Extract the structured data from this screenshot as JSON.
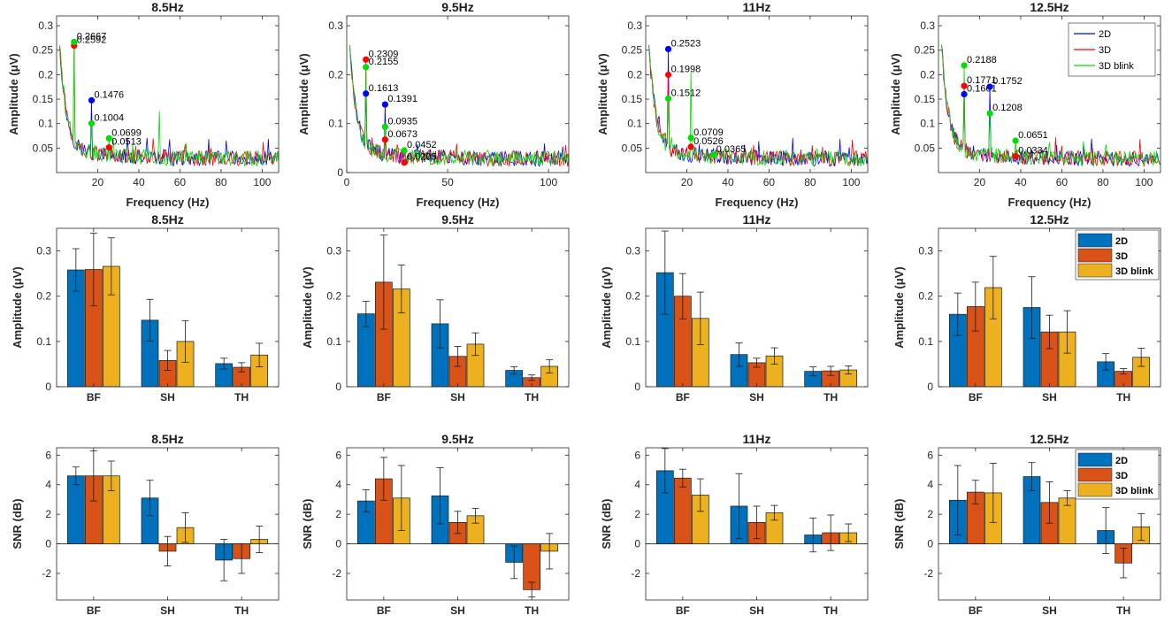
{
  "colors": {
    "spec_2d": "#0000ff",
    "spec_3d": "#ff0000",
    "spec_blink": "#00dd00",
    "bar_2d": "#0072bd",
    "bar_3d": "#d95319",
    "bar_blink": "#edb120"
  },
  "chart_data": [
    {
      "type": "line",
      "title": "8.5Hz",
      "xlabel": "Frequency (Hz)",
      "ylabel": "Amplitude (μV)",
      "xlim": [
        0,
        108
      ],
      "ylim": [
        0,
        0.32
      ],
      "xticks": [
        20,
        40,
        60,
        80,
        100
      ],
      "yticks": [
        0.05,
        0.1,
        0.15,
        0.2,
        0.25,
        0.3
      ],
      "series": [
        "2D",
        "3D",
        "3D blink"
      ],
      "peaks": [
        {
          "series": "3D",
          "x": 8.5,
          "y": 0.2592,
          "label": "0.2592"
        },
        {
          "series": "3D blink",
          "x": 8.5,
          "y": 0.2667,
          "label": "0.2667"
        },
        {
          "series": "2D",
          "x": 17,
          "y": 0.1476,
          "label": "0.1476"
        },
        {
          "series": "3D blink",
          "x": 17,
          "y": 0.1004,
          "label": "0.1004"
        },
        {
          "series": "3D blink",
          "x": 25.5,
          "y": 0.0699,
          "label": "0.0699"
        },
        {
          "series": "3D",
          "x": 25.5,
          "y": 0.0513,
          "label": "0.0513"
        }
      ]
    },
    {
      "type": "line",
      "title": "9.5Hz",
      "xlabel": "Frequency (Hz)",
      "ylabel": "Amplitude (μV)",
      "xlim": [
        0,
        110
      ],
      "ylim": [
        0,
        0.32
      ],
      "xticks": [
        0,
        50,
        100
      ],
      "yticks": [
        0,
        0.1,
        0.2,
        0.3
      ],
      "series": [
        "2D",
        "3D",
        "3D blink"
      ],
      "peaks": [
        {
          "series": "3D",
          "x": 9.5,
          "y": 0.2309,
          "label": "0.2309"
        },
        {
          "series": "3D blink",
          "x": 9.5,
          "y": 0.2155,
          "label": "0.2155"
        },
        {
          "series": "2D",
          "x": 9.5,
          "y": 0.1613,
          "label": "0.1613"
        },
        {
          "series": "2D",
          "x": 19,
          "y": 0.1391,
          "label": "0.1391"
        },
        {
          "series": "3D blink",
          "x": 19,
          "y": 0.0935,
          "label": "0.0935"
        },
        {
          "series": "3D",
          "x": 19,
          "y": 0.0673,
          "label": "0.0673"
        },
        {
          "series": "3D blink",
          "x": 28.5,
          "y": 0.0452,
          "label": "0.0452"
        },
        {
          "series": "3D",
          "x": 28.5,
          "y": 0.0205,
          "label": "0.0205"
        }
      ]
    },
    {
      "type": "line",
      "title": "11Hz",
      "xlabel": "Frequency (Hz)",
      "ylabel": "Amplitude (μV)",
      "xlim": [
        0,
        108
      ],
      "ylim": [
        0,
        0.32
      ],
      "xticks": [
        20,
        40,
        60,
        80,
        100
      ],
      "yticks": [
        0.05,
        0.1,
        0.15,
        0.2,
        0.25,
        0.3
      ],
      "series": [
        "2D",
        "3D",
        "3D blink"
      ],
      "peaks": [
        {
          "series": "2D",
          "x": 11,
          "y": 0.2523,
          "label": "0.2523"
        },
        {
          "series": "3D",
          "x": 11,
          "y": 0.1998,
          "label": "0.1998"
        },
        {
          "series": "3D blink",
          "x": 11,
          "y": 0.1512,
          "label": "0.1512"
        },
        {
          "series": "3D blink",
          "x": 22,
          "y": 0.0709,
          "label": "0.0709"
        },
        {
          "series": "3D",
          "x": 22,
          "y": 0.0526,
          "label": "0.0526"
        },
        {
          "series": "3D blink",
          "x": 33,
          "y": 0.0365,
          "label": "0.0365"
        }
      ]
    },
    {
      "type": "line",
      "title": "12.5Hz",
      "xlabel": "Frequency (Hz)",
      "ylabel": "Amplitude (μV)",
      "xlim": [
        0,
        108
      ],
      "ylim": [
        0,
        0.32
      ],
      "xticks": [
        20,
        40,
        60,
        80,
        100
      ],
      "yticks": [
        0.05,
        0.1,
        0.15,
        0.2,
        0.25,
        0.3
      ],
      "series": [
        "2D",
        "3D",
        "3D blink"
      ],
      "legend": {
        "entries": [
          "2D",
          "3D",
          "3D blink"
        ],
        "placement": "top-right"
      },
      "peaks": [
        {
          "series": "3D blink",
          "x": 12.5,
          "y": 0.2188,
          "label": "0.2188"
        },
        {
          "series": "3D",
          "x": 12.5,
          "y": 0.1771,
          "label": "0.1771"
        },
        {
          "series": "2D",
          "x": 12.5,
          "y": 0.1601,
          "label": "0.1601"
        },
        {
          "series": "2D",
          "x": 25,
          "y": 0.1752,
          "label": "0.1752"
        },
        {
          "series": "3D blink",
          "x": 25,
          "y": 0.1208,
          "label": "0.1208"
        },
        {
          "series": "3D blink",
          "x": 37.5,
          "y": 0.0651,
          "label": "0.0651"
        },
        {
          "series": "3D",
          "x": 37.5,
          "y": 0.0334,
          "label": "0.0334"
        }
      ]
    },
    {
      "type": "bar",
      "title": "8.5Hz",
      "ylabel": "Amplitude (μV)",
      "categories": [
        "BF",
        "SH",
        "TH"
      ],
      "ylim": [
        0,
        0.35
      ],
      "yticks": [
        0,
        0.1,
        0.2,
        0.3
      ],
      "series": [
        {
          "name": "2D",
          "values": [
            0.258,
            0.147,
            0.051
          ],
          "err": [
            0.047,
            0.046,
            0.012
          ]
        },
        {
          "name": "3D",
          "values": [
            0.259,
            0.058,
            0.043
          ],
          "err": [
            0.08,
            0.022,
            0.01
          ]
        },
        {
          "name": "3D blink",
          "values": [
            0.266,
            0.1,
            0.07
          ],
          "err": [
            0.063,
            0.046,
            0.026
          ]
        }
      ]
    },
    {
      "type": "bar",
      "title": "9.5Hz",
      "ylabel": "Amplitude (μV)",
      "categories": [
        "BF",
        "SH",
        "TH"
      ],
      "ylim": [
        0,
        0.35
      ],
      "yticks": [
        0,
        0.1,
        0.2,
        0.3
      ],
      "series": [
        {
          "name": "2D",
          "values": [
            0.161,
            0.139,
            0.036
          ],
          "err": [
            0.028,
            0.053,
            0.008
          ]
        },
        {
          "name": "3D",
          "values": [
            0.231,
            0.067,
            0.02
          ],
          "err": [
            0.104,
            0.022,
            0.006
          ]
        },
        {
          "name": "3D blink",
          "values": [
            0.216,
            0.094,
            0.045
          ],
          "err": [
            0.053,
            0.025,
            0.015
          ]
        }
      ]
    },
    {
      "type": "bar",
      "title": "11Hz",
      "ylabel": "Amplitude (μV)",
      "categories": [
        "BF",
        "SH",
        "TH"
      ],
      "ylim": [
        0,
        0.35
      ],
      "yticks": [
        0,
        0.1,
        0.2,
        0.3
      ],
      "series": [
        {
          "name": "2D",
          "values": [
            0.252,
            0.071,
            0.034
          ],
          "err": [
            0.092,
            0.026,
            0.01
          ]
        },
        {
          "name": "3D",
          "values": [
            0.2,
            0.053,
            0.035
          ],
          "err": [
            0.05,
            0.01,
            0.01
          ]
        },
        {
          "name": "3D blink",
          "values": [
            0.151,
            0.068,
            0.037
          ],
          "err": [
            0.058,
            0.018,
            0.009
          ]
        }
      ]
    },
    {
      "type": "bar",
      "title": "12.5Hz",
      "ylabel": "Amplitude (μV)",
      "categories": [
        "BF",
        "SH",
        "TH"
      ],
      "ylim": [
        0,
        0.35
      ],
      "yticks": [
        0,
        0.1,
        0.2,
        0.3
      ],
      "legend": {
        "entries": [
          "2D",
          "3D",
          "3D blink"
        ],
        "placement": "top-right"
      },
      "series": [
        {
          "name": "2D",
          "values": [
            0.16,
            0.175,
            0.055
          ],
          "err": [
            0.047,
            0.068,
            0.018
          ]
        },
        {
          "name": "3D",
          "values": [
            0.177,
            0.121,
            0.034
          ],
          "err": [
            0.054,
            0.037,
            0.006
          ]
        },
        {
          "name": "3D blink",
          "values": [
            0.219,
            0.121,
            0.065
          ],
          "err": [
            0.069,
            0.047,
            0.02
          ]
        }
      ]
    },
    {
      "type": "bar",
      "title": "8.5Hz",
      "ylabel": "SNR (dB)",
      "categories": [
        "BF",
        "SH",
        "TH"
      ],
      "ylim": [
        -3.8,
        6.5
      ],
      "yticks": [
        -2,
        0,
        2,
        4,
        6
      ],
      "series": [
        {
          "name": "2D",
          "values": [
            4.6,
            3.1,
            -1.1
          ],
          "err": [
            0.6,
            1.2,
            1.4
          ]
        },
        {
          "name": "3D",
          "values": [
            4.6,
            -0.5,
            -1.0
          ],
          "err": [
            1.7,
            1.0,
            1.0
          ]
        },
        {
          "name": "3D blink",
          "values": [
            4.6,
            1.1,
            0.3
          ],
          "err": [
            1.0,
            1.0,
            0.9
          ]
        }
      ]
    },
    {
      "type": "bar",
      "title": "9.5Hz",
      "ylabel": "SNR (dB)",
      "categories": [
        "BF",
        "SH",
        "TH"
      ],
      "ylim": [
        -3.8,
        6.5
      ],
      "yticks": [
        -2,
        0,
        2,
        4,
        6
      ],
      "series": [
        {
          "name": "2D",
          "values": [
            2.9,
            3.25,
            -1.25
          ],
          "err": [
            0.75,
            1.9,
            1.1
          ]
        },
        {
          "name": "3D",
          "values": [
            4.4,
            1.45,
            -3.1
          ],
          "err": [
            1.45,
            0.75,
            0.5
          ]
        },
        {
          "name": "3D blink",
          "values": [
            3.1,
            1.9,
            -0.5
          ],
          "err": [
            2.2,
            0.5,
            1.2
          ]
        }
      ]
    },
    {
      "type": "bar",
      "title": "11Hz",
      "ylabel": "SNR (dB)",
      "categories": [
        "BF",
        "SH",
        "TH"
      ],
      "ylim": [
        -3.8,
        6.5
      ],
      "yticks": [
        -2,
        0,
        2,
        4,
        6
      ],
      "series": [
        {
          "name": "2D",
          "values": [
            4.95,
            2.55,
            0.6
          ],
          "err": [
            1.5,
            2.2,
            1.15
          ]
        },
        {
          "name": "3D",
          "values": [
            4.45,
            1.45,
            0.75
          ],
          "err": [
            0.6,
            1.1,
            1.2
          ]
        },
        {
          "name": "3D blink",
          "values": [
            3.3,
            2.1,
            0.75
          ],
          "err": [
            1.1,
            0.5,
            0.6
          ]
        }
      ]
    },
    {
      "type": "bar",
      "title": "12.5Hz",
      "ylabel": "SNR (dB)",
      "categories": [
        "BF",
        "SH",
        "TH"
      ],
      "ylim": [
        -3.8,
        6.5
      ],
      "yticks": [
        -2,
        0,
        2,
        4,
        6
      ],
      "legend": {
        "entries": [
          "2D",
          "3D",
          "3D blink"
        ],
        "placement": "top-right"
      },
      "series": [
        {
          "name": "2D",
          "values": [
            2.95,
            4.55,
            0.9
          ],
          "err": [
            2.35,
            0.95,
            1.55
          ]
        },
        {
          "name": "3D",
          "values": [
            3.5,
            2.8,
            -1.3
          ],
          "err": [
            0.8,
            1.4,
            1.0
          ]
        },
        {
          "name": "3D blink",
          "values": [
            3.45,
            3.1,
            1.15
          ],
          "err": [
            2.0,
            0.5,
            0.9
          ]
        }
      ]
    }
  ]
}
